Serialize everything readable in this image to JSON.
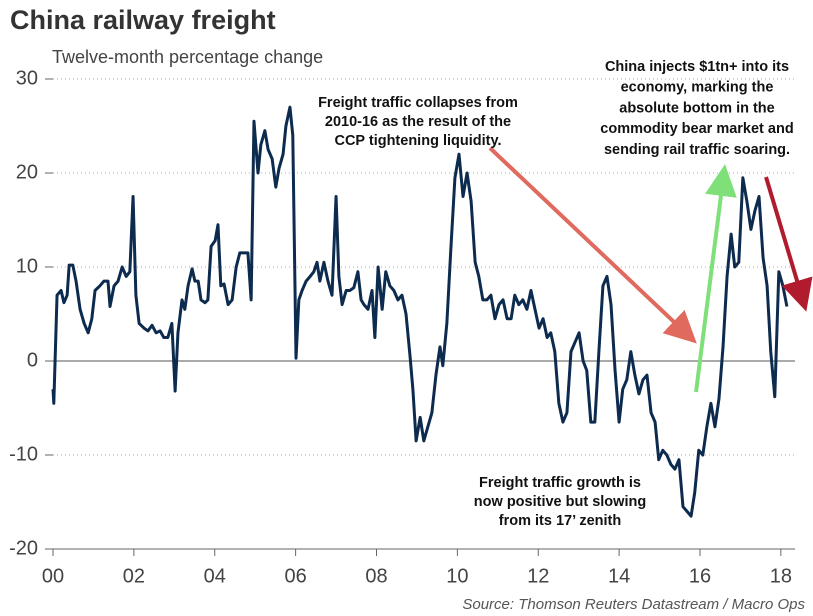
{
  "chart_data": {
    "type": "line",
    "title": "China railway freight",
    "subtitle": "Twelve-month percentage change",
    "source": "Source: Thomson Reuters Datastream / Macro Ops",
    "annotations": [
      {
        "lines": [
          "Freight traffic collapses from",
          "2010-16 as the result of the",
          "CCP tightening liquidity."
        ]
      },
      {
        "lines": [
          "China injects $1tn+ into its",
          "economy, marking the",
          "absolute bottom in the",
          "commodity bear market and",
          "sending rail traffic soaring."
        ]
      },
      {
        "lines": [
          "Freight traffic growth is",
          "now positive but slowing",
          "from its 17’ zenith"
        ]
      }
    ],
    "xlim": [
      2000,
      2018.35
    ],
    "ylim": [
      -20,
      30
    ],
    "yticks": [
      30,
      20,
      10,
      0,
      -10,
      -20
    ],
    "xticks": [
      {
        "value": 2000,
        "label": "00"
      },
      {
        "value": 2002,
        "label": "02"
      },
      {
        "value": 2004,
        "label": "04"
      },
      {
        "value": 2006,
        "label": "06"
      },
      {
        "value": 2008,
        "label": "08"
      },
      {
        "value": 2010,
        "label": "10"
      },
      {
        "value": 2012,
        "label": "12"
      },
      {
        "value": 2014,
        "label": "14"
      },
      {
        "value": 2016,
        "label": "16"
      },
      {
        "value": 2018,
        "label": "18"
      }
    ],
    "grid": true,
    "series": [
      {
        "color": "#0d2b4e",
        "x": [
          2000.0,
          2000.02,
          2000.1,
          2000.2,
          2000.27,
          2000.35,
          2000.4,
          2000.49,
          2000.57,
          2000.67,
          2000.77,
          2000.87,
          2000.96,
          2001.04,
          2001.16,
          2001.26,
          2001.36,
          2001.41,
          2001.51,
          2001.61,
          2001.71,
          2001.81,
          2001.9,
          2001.98,
          2002.05,
          2002.13,
          2002.25,
          2002.35,
          2002.45,
          2002.55,
          2002.65,
          2002.74,
          2002.84,
          2002.94,
          2003.02,
          2003.09,
          2003.19,
          2003.26,
          2003.34,
          2003.44,
          2003.51,
          2003.59,
          2003.66,
          2003.76,
          2003.83,
          2003.91,
          2004.01,
          2004.08,
          2004.15,
          2004.23,
          2004.33,
          2004.43,
          2004.53,
          2004.62,
          2004.72,
          2004.82,
          2004.9,
          2004.97,
          2005.07,
          2005.14,
          2005.24,
          2005.32,
          2005.42,
          2005.51,
          2005.59,
          2005.69,
          2005.76,
          2005.86,
          2005.93,
          2006.01,
          2006.08,
          2006.16,
          2006.26,
          2006.36,
          2006.45,
          2006.53,
          2006.6,
          2006.7,
          2006.8,
          2006.9,
          2007.0,
          2007.07,
          2007.15,
          2007.25,
          2007.34,
          2007.44,
          2007.54,
          2007.62,
          2007.69,
          2007.79,
          2007.89,
          2007.96,
          2008.04,
          2008.14,
          2008.23,
          2008.33,
          2008.43,
          2008.53,
          2008.63,
          2008.73,
          2008.83,
          2008.9,
          2008.98,
          2009.08,
          2009.17,
          2009.27,
          2009.37,
          2009.47,
          2009.57,
          2009.64,
          2009.74,
          2009.84,
          2009.94,
          2010.04,
          2010.14,
          2010.24,
          2010.34,
          2010.44,
          2010.53,
          2010.63,
          2010.73,
          2010.83,
          2010.93,
          2011.03,
          2011.13,
          2011.23,
          2011.33,
          2011.42,
          2011.52,
          2011.62,
          2011.72,
          2011.82,
          2011.92,
          2012.02,
          2012.12,
          2012.22,
          2012.31,
          2012.41,
          2012.51,
          2012.61,
          2012.71,
          2012.81,
          2012.91,
          2013.01,
          2013.11,
          2013.2,
          2013.3,
          2013.4,
          2013.5,
          2013.6,
          2013.7,
          2013.8,
          2013.9,
          2014.0,
          2014.09,
          2014.19,
          2014.29,
          2014.39,
          2014.49,
          2014.59,
          2014.69,
          2014.79,
          2014.89,
          2014.98,
          2015.08,
          2015.18,
          2015.28,
          2015.38,
          2015.48,
          2015.58,
          2015.68,
          2015.78,
          2015.87,
          2015.97,
          2016.07,
          2016.17,
          2016.27,
          2016.37,
          2016.47,
          2016.57,
          2016.67,
          2016.77,
          2016.86,
          2016.96,
          2017.06,
          2017.16,
          2017.26,
          2017.36,
          2017.46,
          2017.56,
          2017.66,
          2017.75,
          2017.85,
          2017.95,
          2018.05,
          2018.15
        ],
        "values": [
          -3,
          -4.5,
          7,
          7.5,
          6.2,
          7,
          10.2,
          10.2,
          8.5,
          5.5,
          4,
          3,
          4.5,
          7.5,
          8,
          8.5,
          8.5,
          5.8,
          8,
          8.5,
          10,
          9,
          9.5,
          17.5,
          7,
          4,
          3.5,
          3.2,
          3.8,
          3,
          3.2,
          2.5,
          2.5,
          4,
          -3.2,
          3,
          6.5,
          5.5,
          8,
          9.8,
          8.5,
          8.5,
          6.5,
          6.2,
          6.5,
          12.2,
          12.8,
          14.5,
          8,
          8.2,
          6,
          6.5,
          10,
          11.5,
          11.5,
          11.5,
          6.5,
          25.5,
          20,
          23,
          24.5,
          22.5,
          21.5,
          18.5,
          20.5,
          22,
          25,
          27,
          24,
          0.3,
          6.5,
          7.5,
          8.5,
          9,
          9.5,
          10.5,
          8.5,
          10.5,
          8.5,
          7,
          17.5,
          9,
          6,
          7.5,
          7.5,
          7.8,
          9.5,
          6.5,
          6,
          5.5,
          7.5,
          2.5,
          10,
          5.5,
          9.5,
          8,
          7.5,
          6.5,
          7,
          5,
          0.5,
          -3,
          -8.5,
          -6,
          -8.5,
          -7,
          -5.5,
          -1.5,
          1.5,
          -0.5,
          4,
          12,
          19.5,
          22,
          17.5,
          20,
          17,
          10.5,
          9,
          6.5,
          6.5,
          7,
          4.5,
          6,
          6.5,
          4.5,
          4.5,
          7,
          6,
          6.5,
          5.5,
          7.5,
          5.5,
          3.5,
          4.5,
          2.5,
          3,
          1,
          -4.5,
          -6.5,
          -5.5,
          1,
          2,
          3,
          0,
          -1,
          -6.5,
          -6.5,
          1,
          8,
          9,
          6,
          -1,
          -6.5,
          -3,
          -2,
          1,
          -1.5,
          -3.5,
          -2,
          -1.5,
          -5.5,
          -6.5,
          -10.5,
          -9.5,
          -10,
          -11,
          -11.5,
          -10.5,
          -15.5,
          -16,
          -16.5,
          -14,
          -9.5,
          -10,
          -7,
          -4.5,
          -7,
          -4,
          1.5,
          9,
          13.5,
          10,
          10.5,
          19.5,
          17,
          14,
          16,
          17.5,
          11,
          8,
          1,
          -3.8,
          9.5,
          8,
          5.8
        ]
      }
    ]
  }
}
